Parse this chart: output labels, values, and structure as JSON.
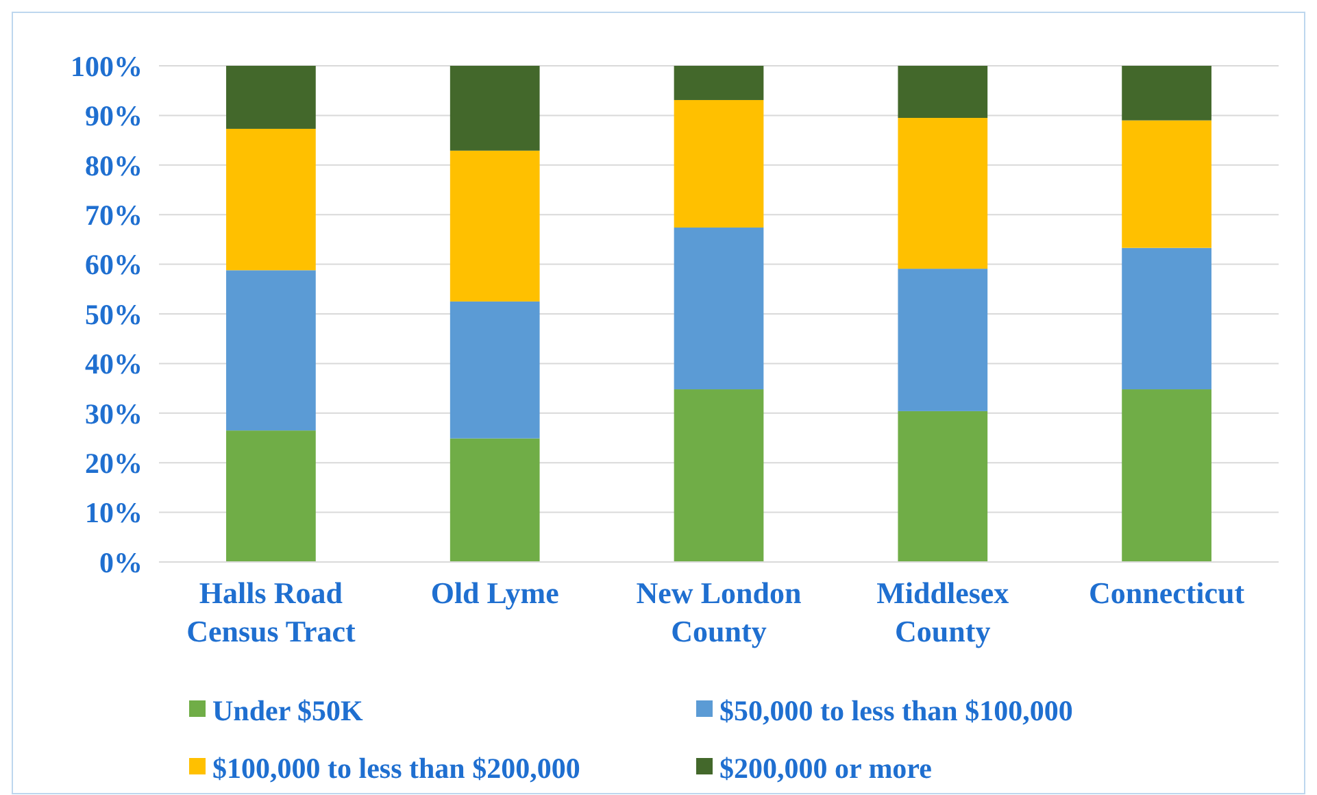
{
  "chart_data": {
    "type": "bar",
    "stacked": true,
    "categories": [
      "Halls Road Census Tract",
      "Old Lyme",
      "New London County",
      "Middlesex County",
      "Connecticut"
    ],
    "series": [
      {
        "name": "Under $50K",
        "color": "#70ad47",
        "values": [
          26.5,
          24.9,
          34.8,
          30.4,
          34.8
        ]
      },
      {
        "name": "$50,000 to less than $100,000",
        "color": "#5b9bd5",
        "values": [
          32.3,
          27.6,
          32.6,
          28.7,
          28.5
        ]
      },
      {
        "name": "$100,000 to less than $200,000",
        "color": "#ffc000",
        "values": [
          28.5,
          30.4,
          25.7,
          30.4,
          25.7
        ]
      },
      {
        "name": "$200,000 or more",
        "color": "#43682b",
        "values": [
          12.7,
          17.1,
          6.9,
          10.5,
          11.0
        ]
      }
    ],
    "ylim": [
      0,
      100
    ],
    "yticks": [
      {
        "value": 0,
        "label": "0%"
      },
      {
        "value": 10,
        "label": "10%"
      },
      {
        "value": 20,
        "label": "20%"
      },
      {
        "value": 30,
        "label": "30%"
      },
      {
        "value": 40,
        "label": "40%"
      },
      {
        "value": 50,
        "label": "50%"
      },
      {
        "value": 60,
        "label": "60%"
      },
      {
        "value": 70,
        "label": "70%"
      },
      {
        "value": 80,
        "label": "80%"
      },
      {
        "value": 90,
        "label": "90%"
      },
      {
        "value": 100,
        "label": "100%"
      }
    ],
    "grid": "y",
    "legend": "bottom"
  }
}
